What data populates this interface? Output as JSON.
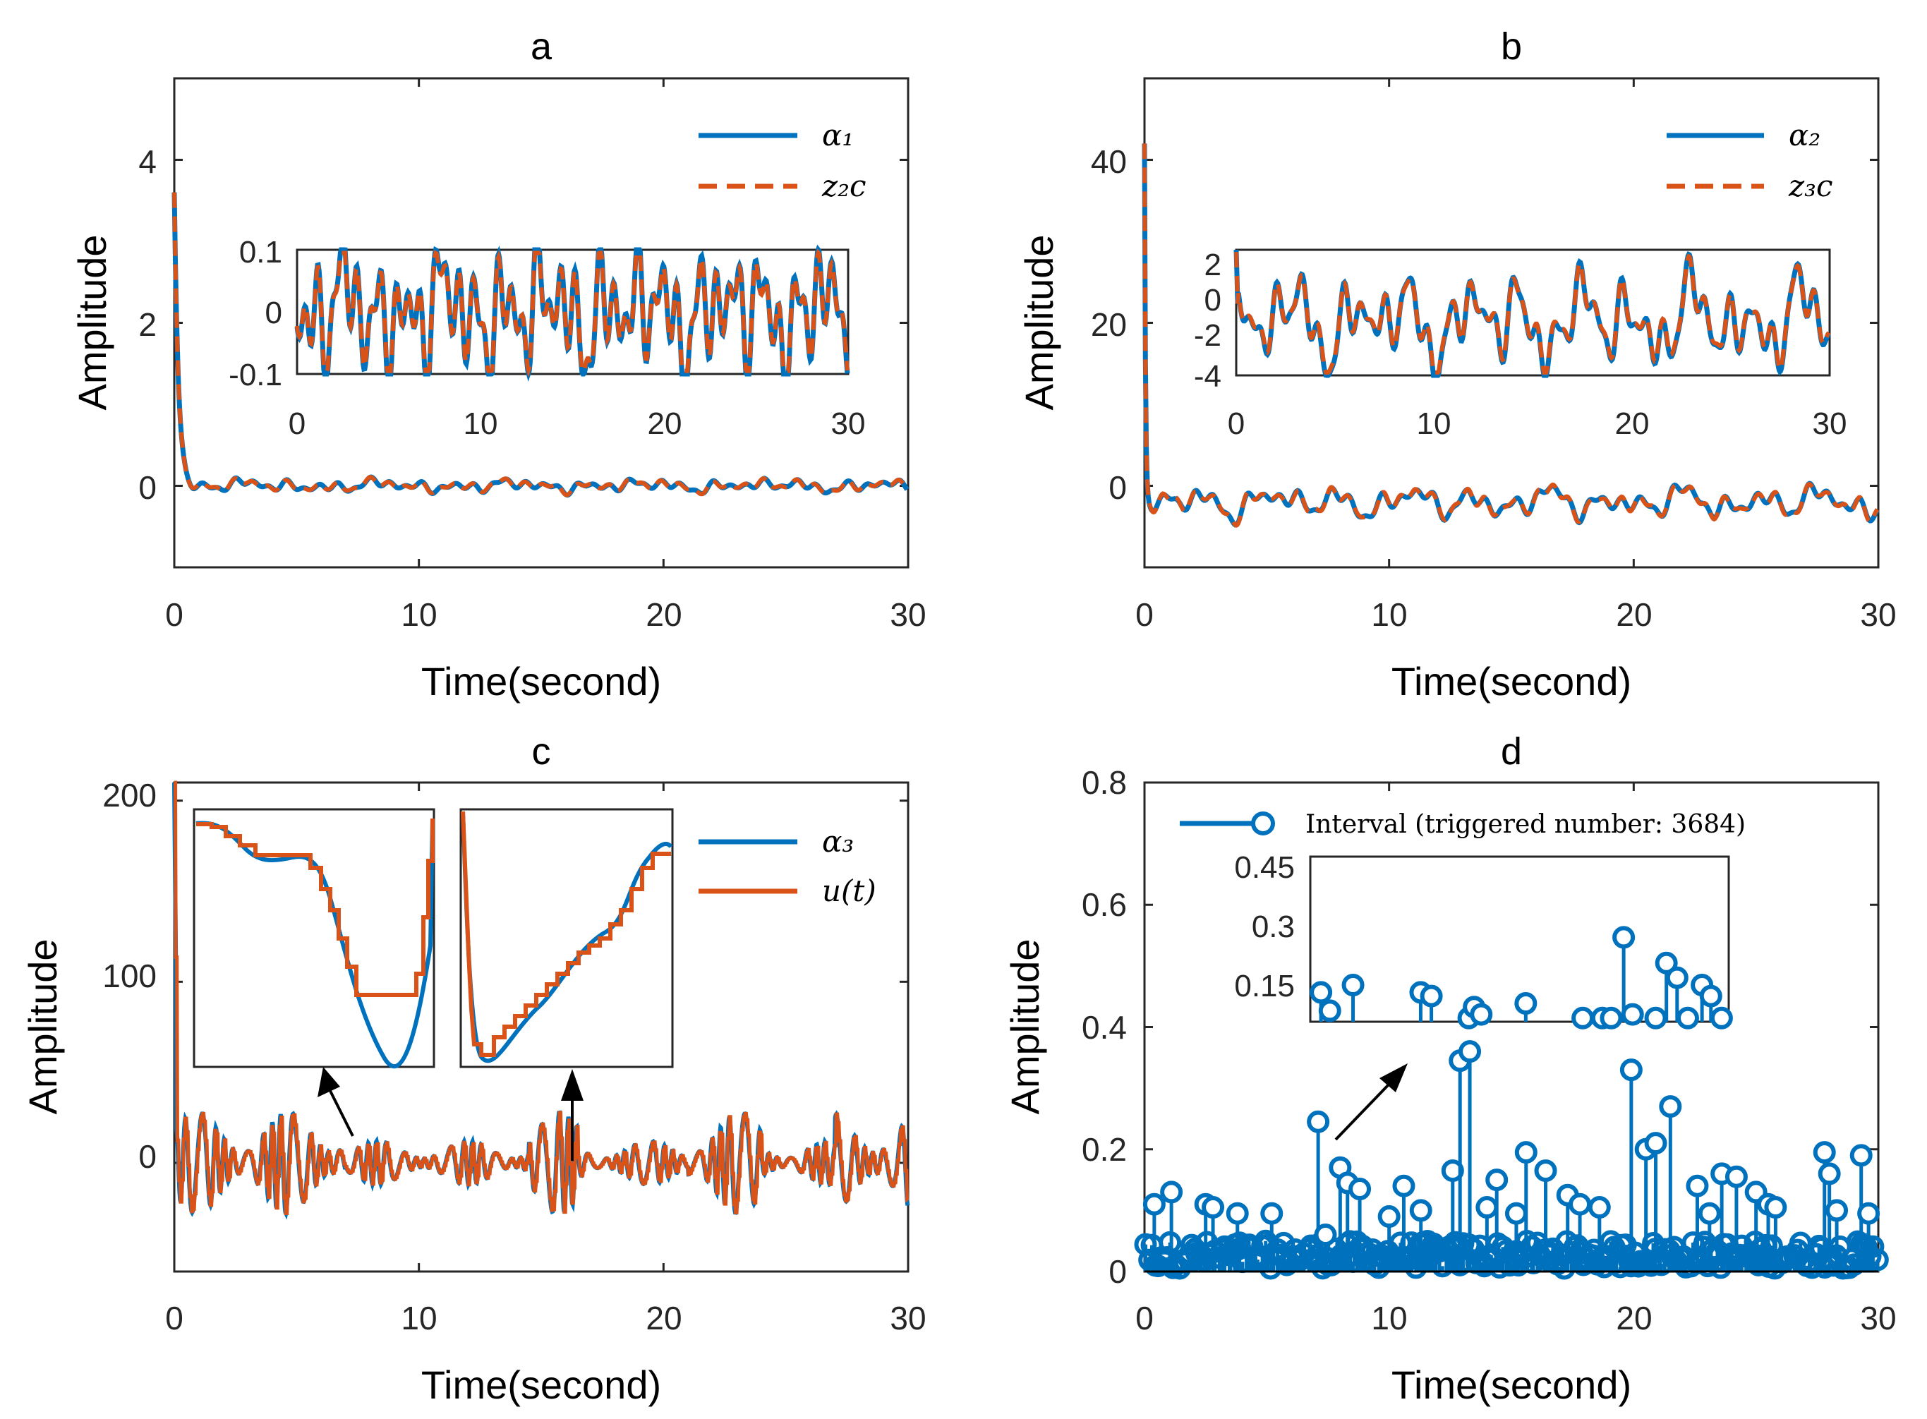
{
  "colors": {
    "blue": "#0072BD",
    "orange": "#D95319",
    "axis": "#262626"
  },
  "chart_data": [
    {
      "id": "a",
      "type": "line",
      "title": "a",
      "xlabel": "Time(second)",
      "ylabel": "Amplitude",
      "xlim": [
        0,
        30
      ],
      "ylim": [
        -1,
        5
      ],
      "xticks": [
        "0",
        "10",
        "20",
        "30"
      ],
      "yticks": [
        "0",
        "2",
        "4"
      ],
      "series": [
        {
          "name": "α1",
          "legend_label": "α₁",
          "style": "solid",
          "color": "#0072BD",
          "description": "decays from 3.6 to about 0 within 0.8 s, then oscillates near 0 (±0.08)"
        },
        {
          "name": "z2c",
          "legend_label": "z₂c",
          "style": "dashed",
          "color": "#D95319",
          "description": "filtered version of α1, nearly identical"
        }
      ],
      "inset": {
        "xlim": [
          0,
          30
        ],
        "ylim": [
          -0.1,
          0.1
        ],
        "xticks": [
          "0",
          "10",
          "20",
          "30"
        ],
        "yticks": [
          "-0.1",
          "0",
          "0.1"
        ]
      }
    },
    {
      "id": "b",
      "type": "line",
      "title": "b",
      "xlabel": "Time(second)",
      "ylabel": "Amplitude",
      "xlim": [
        0,
        30
      ],
      "ylim": [
        -10,
        50
      ],
      "xticks": [
        "0",
        "10",
        "20",
        "30"
      ],
      "yticks": [
        "0",
        "20",
        "40"
      ],
      "series": [
        {
          "name": "α2",
          "legend_label": "α₂",
          "style": "solid",
          "color": "#0072BD",
          "description": "starts near 40, drops to about -2 within 0.2 s, then oscillates between -4 and 2"
        },
        {
          "name": "z3c",
          "legend_label": "z₃c",
          "style": "dashed",
          "color": "#D95319",
          "description": "filtered version of α2, nearly identical"
        }
      ],
      "inset": {
        "xlim": [
          0,
          30
        ],
        "ylim": [
          -4,
          3
        ],
        "xticks": [
          "0",
          "10",
          "20",
          "30"
        ],
        "yticks": [
          "-4",
          "-2",
          "0",
          "2"
        ]
      }
    },
    {
      "id": "c",
      "type": "line",
      "title": "c",
      "xlabel": "Time(second)",
      "ylabel": "Amplitude",
      "xlim": [
        0,
        30
      ],
      "ylim": [
        -60,
        210
      ],
      "xticks": [
        "0",
        "10",
        "20",
        "30"
      ],
      "yticks": [
        "0",
        "100",
        "200"
      ],
      "series": [
        {
          "name": "α3",
          "legend_label": "α₃",
          "style": "solid",
          "color": "#0072BD",
          "description": "spike to 210 at t=0 then oscillates roughly between -35 and 30"
        },
        {
          "name": "u(t)",
          "legend_label": "u(t)",
          "style": "solid",
          "color": "#D95319",
          "description": "event-triggered (piecewise constant) version of α3"
        }
      ],
      "insets": [
        "zoom around t≈7",
        "zoom around t≈16"
      ]
    },
    {
      "id": "d",
      "type": "stem",
      "title": "d",
      "xlabel": "Time(second)",
      "ylabel": "Amplitude",
      "xlim": [
        0,
        30
      ],
      "ylim": [
        0,
        0.8
      ],
      "xticks": [
        "0",
        "10",
        "20",
        "30"
      ],
      "yticks": [
        "0",
        "0.2",
        "0.4",
        "0.6",
        "0.8"
      ],
      "series": [
        {
          "name": "Interval (triggered number: 3684)",
          "color": "#0072BD"
        }
      ],
      "large_intervals": [
        {
          "t": 0.4,
          "v": 0.11
        },
        {
          "t": 1.1,
          "v": 0.13
        },
        {
          "t": 2.5,
          "v": 0.11
        },
        {
          "t": 2.8,
          "v": 0.105
        },
        {
          "t": 3.8,
          "v": 0.095
        },
        {
          "t": 5.2,
          "v": 0.095
        },
        {
          "t": 7.1,
          "v": 0.245
        },
        {
          "t": 7.4,
          "v": 0.06
        },
        {
          "t": 8.0,
          "v": 0.17
        },
        {
          "t": 8.3,
          "v": 0.145
        },
        {
          "t": 8.8,
          "v": 0.135
        },
        {
          "t": 10.0,
          "v": 0.09
        },
        {
          "t": 10.6,
          "v": 0.14
        },
        {
          "t": 11.3,
          "v": 0.1
        },
        {
          "t": 12.6,
          "v": 0.165
        },
        {
          "t": 12.9,
          "v": 0.345
        },
        {
          "t": 13.3,
          "v": 0.36
        },
        {
          "t": 14.0,
          "v": 0.105
        },
        {
          "t": 14.4,
          "v": 0.15
        },
        {
          "t": 15.2,
          "v": 0.095
        },
        {
          "t": 15.6,
          "v": 0.195
        },
        {
          "t": 16.4,
          "v": 0.165
        },
        {
          "t": 17.3,
          "v": 0.125
        },
        {
          "t": 17.8,
          "v": 0.11
        },
        {
          "t": 18.6,
          "v": 0.105
        },
        {
          "t": 19.9,
          "v": 0.33
        },
        {
          "t": 20.5,
          "v": 0.2
        },
        {
          "t": 20.9,
          "v": 0.21
        },
        {
          "t": 21.5,
          "v": 0.27
        },
        {
          "t": 22.6,
          "v": 0.14
        },
        {
          "t": 23.1,
          "v": 0.095
        },
        {
          "t": 23.6,
          "v": 0.16
        },
        {
          "t": 24.2,
          "v": 0.155
        },
        {
          "t": 25.0,
          "v": 0.13
        },
        {
          "t": 25.5,
          "v": 0.11
        },
        {
          "t": 25.8,
          "v": 0.105
        },
        {
          "t": 27.8,
          "v": 0.195
        },
        {
          "t": 28.0,
          "v": 0.16
        },
        {
          "t": 28.3,
          "v": 0.1
        },
        {
          "t": 29.3,
          "v": 0.19
        },
        {
          "t": 29.6,
          "v": 0.095
        }
      ],
      "inset": {
        "yticks": [
          "0.15",
          "0.3",
          "0.45"
        ],
        "points": [
          {
            "t": 0.6,
            "v": 0.13
          },
          {
            "t": 1.1,
            "v": 0.08
          },
          {
            "t": 2.4,
            "v": 0.15
          },
          {
            "t": 6.2,
            "v": 0.13
          },
          {
            "t": 6.8,
            "v": 0.12
          },
          {
            "t": 8.9,
            "v": 0.05
          },
          {
            "t": 9.2,
            "v": 0.09
          },
          {
            "t": 9.6,
            "v": 0.07
          },
          {
            "t": 12.1,
            "v": 0.1
          },
          {
            "t": 15.3,
            "v": 0.06
          },
          {
            "t": 16.4,
            "v": 0.06
          },
          {
            "t": 16.9,
            "v": 0.05
          },
          {
            "t": 17.6,
            "v": 0.28
          },
          {
            "t": 18.1,
            "v": 0.07
          },
          {
            "t": 19.4,
            "v": 0.04
          },
          {
            "t": 20.0,
            "v": 0.21
          },
          {
            "t": 20.6,
            "v": 0.17
          },
          {
            "t": 21.2,
            "v": 0.06
          },
          {
            "t": 22.0,
            "v": 0.15
          },
          {
            "t": 22.5,
            "v": 0.12
          },
          {
            "t": 23.1,
            "v": 0.05
          }
        ]
      }
    }
  ]
}
